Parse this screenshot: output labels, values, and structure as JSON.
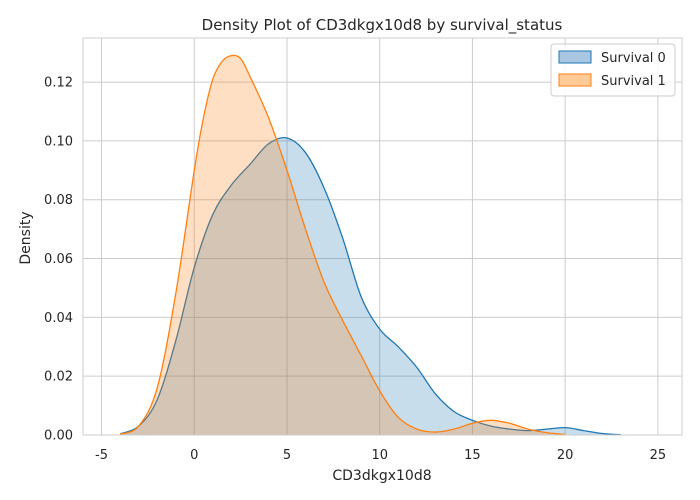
{
  "chart_data": {
    "type": "area",
    "title": "Density Plot of CD3dkgx10d8 by survival_status",
    "xlabel": "CD3dkgx10d8",
    "ylabel": "Density",
    "xlim": [
      -6,
      26.3
    ],
    "ylim": [
      0,
      0.135
    ],
    "xticks": [
      -5,
      0,
      5,
      10,
      15,
      20,
      25
    ],
    "yticks": [
      0.0,
      0.02,
      0.04,
      0.06,
      0.08,
      0.1,
      0.12
    ],
    "ytick_labels": [
      "0.00",
      "0.02",
      "0.04",
      "0.06",
      "0.08",
      "0.10",
      "0.12"
    ],
    "grid": true,
    "legend_position": "top-right",
    "series": [
      {
        "name": "Survival 0",
        "color": "#1f77b4",
        "fill": "#a9c6e3",
        "x": [
          -4,
          -3,
          -2,
          -1,
          0,
          1,
          2,
          3,
          4,
          5,
          6,
          7,
          8,
          9,
          10,
          11,
          12,
          13,
          14,
          15,
          16,
          17,
          18,
          19,
          20,
          21,
          22,
          23
        ],
        "y": [
          0.0004,
          0.003,
          0.012,
          0.032,
          0.057,
          0.075,
          0.085,
          0.092,
          0.099,
          0.101,
          0.096,
          0.084,
          0.067,
          0.047,
          0.036,
          0.03,
          0.023,
          0.014,
          0.008,
          0.005,
          0.003,
          0.002,
          0.0015,
          0.002,
          0.0025,
          0.0015,
          0.0005,
          0.0001
        ]
      },
      {
        "name": "Survival 1",
        "color": "#ff7f0e",
        "fill": "#ffcc99",
        "x": [
          -4,
          -3,
          -2,
          -1,
          0,
          0.5,
          1,
          1.5,
          2,
          2.5,
          3,
          4,
          5,
          6,
          7,
          8,
          9,
          10,
          11,
          12,
          13,
          14,
          15,
          16,
          17,
          18,
          19,
          20
        ],
        "y": [
          0.0003,
          0.003,
          0.016,
          0.048,
          0.09,
          0.108,
          0.121,
          0.127,
          0.129,
          0.128,
          0.122,
          0.108,
          0.09,
          0.07,
          0.052,
          0.039,
          0.027,
          0.015,
          0.006,
          0.002,
          0.001,
          0.002,
          0.004,
          0.005,
          0.004,
          0.002,
          0.0008,
          0.0002
        ]
      }
    ]
  }
}
